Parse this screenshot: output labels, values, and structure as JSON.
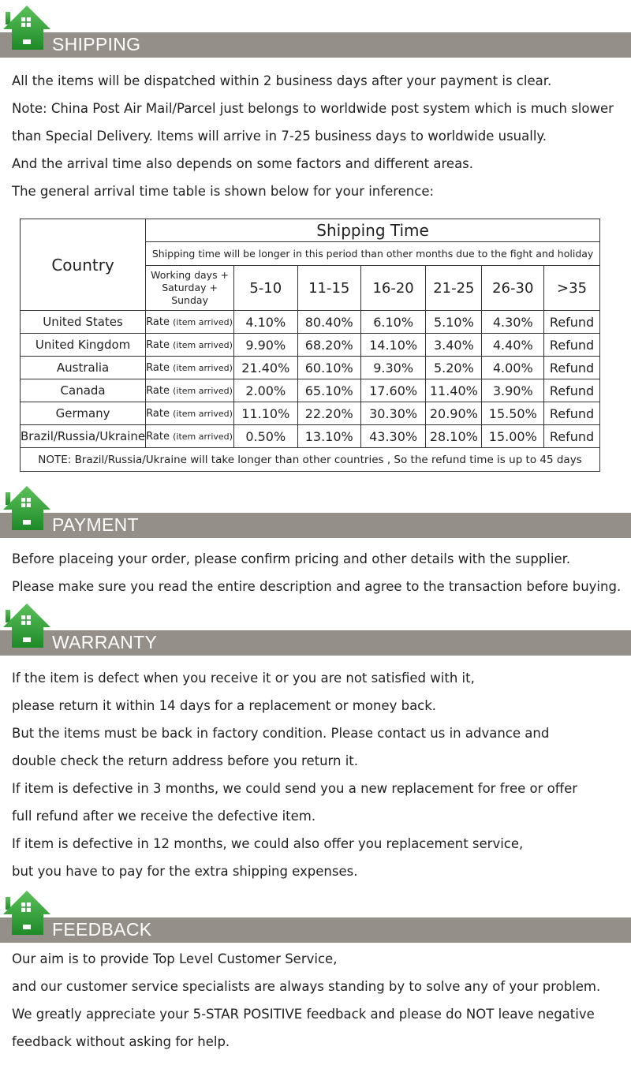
{
  "sections": [
    {
      "title": "SHIPPING",
      "lines": [
        "All the items will be dispatched within 2 business days after your payment is clear.",
        "Note: China Post Air Mail/Parcel just belongs to worldwide post system which is much slower",
        "than Special Delivery. Items will arrive in 7-25 business days to worldwide usually.",
        "And the arrival time also depends on some factors and different areas.",
        "The general arrival time table is shown below for your inference:"
      ]
    },
    {
      "title": "PAYMENT",
      "lines": [
        "Before placeing your order, please confirm pricing and other details with the supplier.",
        "Please make sure you read the entire description and agree to the transaction before buying."
      ]
    },
    {
      "title": "WARRANTY",
      "lines": [
        "If the item is defect when you receive it or you are not satisfied with it,",
        "please return it within 14 days for a replacement or money back.",
        "But the items must be back in factory condition. Please contact us in advance and",
        "double check the return address before you return it.",
        "If item is defective in 3 months, we could send you a new replacement for free or offer",
        "full refund after we receive the defective item.",
        "If item is defective in 12 months, we could also offer you replacement service,",
        "but you have to pay for the extra shipping expenses."
      ]
    },
    {
      "title": "FEEDBACK",
      "lines": [
        "Our aim is to provide Top Level Customer Service,",
        "and our customer service specialists are always standing by to solve any of your problem.",
        "We greatly appreciate your 5-STAR POSITIVE feedback and please do NOT leave negative",
        "feedback without asking for help."
      ]
    }
  ],
  "table": {
    "country_header": "Country",
    "title": "Shipping Time",
    "subtitle": "Shipping time will be longer in this period than other months due to the fight and holiday",
    "days_label": "Working days + Saturday + Sunday",
    "columns": [
      "5-10",
      "11-15",
      "16-20",
      "21-25",
      "26-30",
      ">35"
    ],
    "rate_label": "Rate",
    "rate_sub": "(item arrived)",
    "rows": [
      {
        "country": "United States",
        "values": [
          "4.10%",
          "80.40%",
          "6.10%",
          "5.10%",
          "4.30%",
          "Refund"
        ]
      },
      {
        "country": "United Kingdom",
        "values": [
          "9.90%",
          "68.20%",
          "14.10%",
          "3.40%",
          "4.40%",
          "Refund"
        ]
      },
      {
        "country": "Australia",
        "values": [
          "21.40%",
          "60.10%",
          "9.30%",
          "5.20%",
          "4.00%",
          "Refund"
        ]
      },
      {
        "country": "Canada",
        "values": [
          "2.00%",
          "65.10%",
          "17.60%",
          "11.40%",
          "3.90%",
          "Refund"
        ]
      },
      {
        "country": "Germany",
        "values": [
          "11.10%",
          "22.20%",
          "30.30%",
          "20.90%",
          "15.50%",
          "Refund"
        ]
      },
      {
        "country": "Brazil/Russia/Ukraine",
        "values": [
          "0.50%",
          "13.10%",
          "43.30%",
          "28.10%",
          "15.00%",
          "Refund"
        ]
      }
    ],
    "note": "NOTE: Brazil/Russia/Ukraine will take longer than other countries , So the refund time is up to 45 days"
  },
  "colors": {
    "bar": "#958f89",
    "house": "#2f9a34"
  }
}
